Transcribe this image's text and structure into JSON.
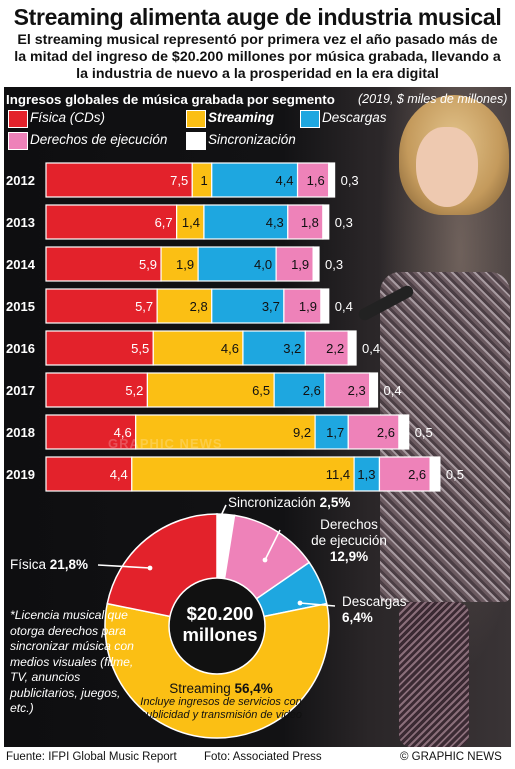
{
  "title": "Streaming alimenta auge de industria musical",
  "subtitle": "El streaming musical representó por primera vez el año pasado más de la mitad del ingreso de $20.200 millones por música grabada, llevando a la industria de nuevo a la prosperidad en la era digital",
  "legend": {
    "title": "Ingresos globales de música grabada por segmento",
    "note": "(2019, $ miles de millones)",
    "fisica": "Física (CDs)",
    "streaming": "Streaming",
    "descargas": "Descargas",
    "derechos": "Derechos de ejecución",
    "sincronizacion": "Sincronización"
  },
  "colors": {
    "fisica": "#e3222b",
    "streaming": "#fbbf14",
    "descargas": "#1ea7e0",
    "derechos": "#ee82b9",
    "sincronizacion": "#ffffff",
    "panel": "#111113"
  },
  "chart_data": [
    {
      "type": "bar",
      "orientation": "horizontal-stacked",
      "title": "Ingresos globales de música grabada por segmento",
      "note": "(2019, $ miles de millones)",
      "categories": [
        "2012",
        "2013",
        "2014",
        "2015",
        "2016",
        "2017",
        "2018",
        "2019"
      ],
      "series": [
        {
          "name": "Física (CDs)",
          "values": [
            7.5,
            6.7,
            5.9,
            5.7,
            5.5,
            5.2,
            4.6,
            4.4
          ],
          "labels": [
            "7,5",
            "6,7",
            "5,9",
            "5,7",
            "5,5",
            "5,2",
            "4,6",
            "4,4"
          ]
        },
        {
          "name": "Streaming",
          "values": [
            1.0,
            1.4,
            1.9,
            2.8,
            4.6,
            6.5,
            9.2,
            11.4
          ],
          "labels": [
            "1",
            "1,4",
            "1,9",
            "2,8",
            "4,6",
            "6,5",
            "9,2",
            "11,4"
          ]
        },
        {
          "name": "Descargas",
          "values": [
            4.4,
            4.3,
            4.0,
            3.7,
            3.2,
            2.6,
            1.7,
            1.3
          ],
          "labels": [
            "4,4",
            "4,3",
            "4,0",
            "3,7",
            "3,2",
            "2,6",
            "1,7",
            "1,3"
          ]
        },
        {
          "name": "Derechos de ejecución",
          "values": [
            1.6,
            1.8,
            1.9,
            1.9,
            2.2,
            2.3,
            2.6,
            2.6
          ],
          "labels": [
            "1,6",
            "1,8",
            "1,9",
            "1,9",
            "2,2",
            "2,3",
            "2,6",
            "2,6"
          ]
        },
        {
          "name": "Sincronización",
          "values": [
            0.3,
            0.3,
            0.3,
            0.4,
            0.4,
            0.4,
            0.5,
            0.5
          ],
          "labels": [
            "0,3",
            "0,3",
            "0,3",
            "0,4",
            "0,4",
            "0,4",
            "0,5",
            "0,5"
          ]
        }
      ]
    },
    {
      "type": "pie",
      "center_label": [
        "$20.200",
        "millones"
      ],
      "slices": [
        {
          "name": "Sincronización",
          "value": 2.5,
          "label": "2,5%"
        },
        {
          "name": "Derechos de ejecución",
          "value": 12.9,
          "label": "12,9%"
        },
        {
          "name": "Descargas",
          "value": 6.4,
          "label": "6,4%"
        },
        {
          "name": "Streaming",
          "value": 56.4,
          "label": "56,4%"
        },
        {
          "name": "Física",
          "value": 21.8,
          "label": "21,8%"
        }
      ]
    }
  ],
  "pie_labels": {
    "sincronizacion": "Sincronización",
    "sincronizacion_pct": "2,5%",
    "derechos_1": "Derechos",
    "derechos_2": "de ejecución",
    "derechos_pct": "12,9%",
    "descargas": "Descargas",
    "descargas_pct": "6,4%",
    "fisica": "Física",
    "fisica_pct": "21,8%",
    "streaming": "Streaming",
    "streaming_pct": "56,4%",
    "streaming_note": "Incluye ingresos de servicios con publicidad y transmisión de video",
    "center_1": "$20.200",
    "center_2": "millones"
  },
  "footnote": "*Licencia musical que otorga derechos para sincronizar música con medios visuales (filme, TV, anuncios publicitarios, juegos, etc.)",
  "footer": {
    "source": "Fuente: IFPI Global Music Report",
    "photo": "Foto: Associated Press",
    "brand": "© GRAPHIC NEWS"
  },
  "watermark": "GRAPHIC NEWS"
}
